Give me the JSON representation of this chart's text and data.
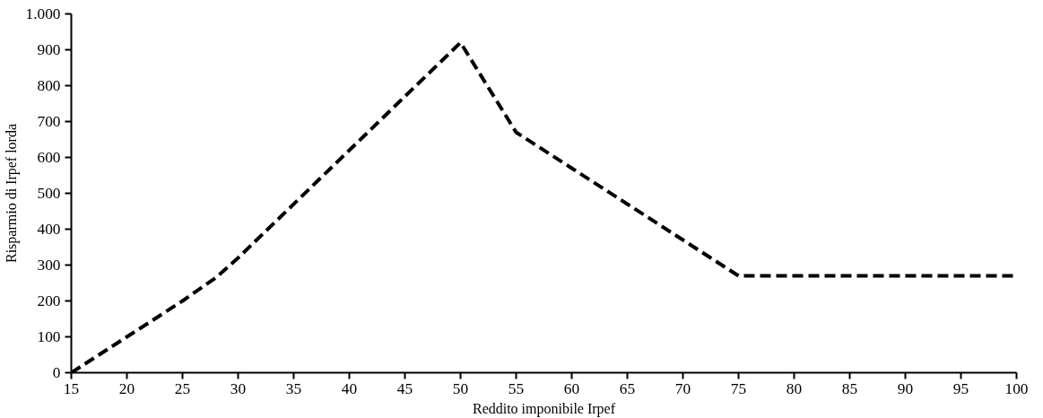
{
  "chart_data": {
    "type": "line",
    "xlabel": "Reddito imponibile Irpef",
    "ylabel": "Risparmio di Irpef lorda",
    "x": [
      15,
      20,
      25,
      28,
      30,
      35,
      40,
      45,
      50,
      55,
      60,
      65,
      70,
      75,
      80,
      85,
      90,
      95,
      100
    ],
    "series": [
      {
        "color": "#000000",
        "values": [
          0,
          100,
          200,
          265,
          320,
          470,
          620,
          770,
          920,
          670,
          570,
          470,
          370,
          270,
          270,
          270,
          270,
          270,
          270
        ]
      }
    ],
    "xlim": [
      15,
      100
    ],
    "xticks": [
      15,
      20,
      25,
      30,
      35,
      40,
      45,
      50,
      55,
      60,
      65,
      70,
      75,
      80,
      85,
      90,
      95,
      100
    ],
    "ylim": [
      0,
      1000
    ],
    "yticks": [
      0,
      100,
      200,
      300,
      400,
      500,
      600,
      700,
      800,
      900,
      {
        "value": 1000,
        "label": "1.000"
      }
    ],
    "grid": false,
    "marker": "none",
    "line_style": "dashed"
  }
}
